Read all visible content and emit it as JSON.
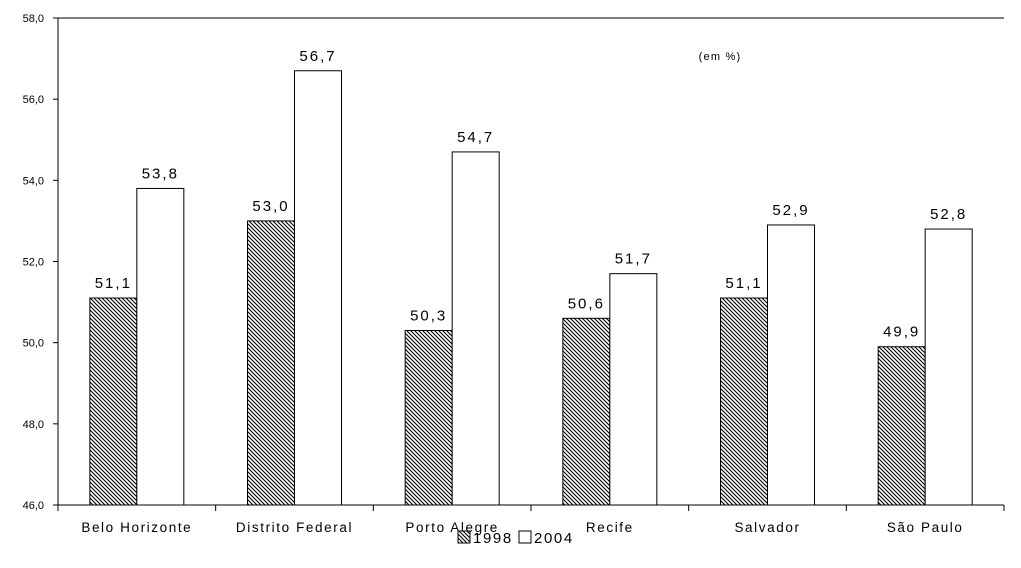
{
  "chart_data": {
    "type": "bar",
    "title": "",
    "note": "(em %)",
    "xlabel": "",
    "ylabel": "",
    "ylim": [
      46.0,
      58.0
    ],
    "yticks": [
      "46,0",
      "48,0",
      "50,0",
      "52,0",
      "54,0",
      "56,0",
      "58,0"
    ],
    "categories": [
      "Belo Horizonte",
      "Distrito Federal",
      "Porto Alegre",
      "Recife",
      "Salvador",
      "São Paulo"
    ],
    "series": [
      {
        "name": "1998",
        "values": [
          51.1,
          53.0,
          50.3,
          50.6,
          51.1,
          49.9
        ],
        "labels": [
          "51,1",
          "53,0",
          "50,3",
          "50,6",
          "51,1",
          "49,9"
        ],
        "fill": "hatched"
      },
      {
        "name": "2004",
        "values": [
          53.8,
          56.7,
          54.7,
          51.7,
          52.9,
          52.8
        ],
        "labels": [
          "53,8",
          "56,7",
          "54,7",
          "51,7",
          "52,9",
          "52,8"
        ],
        "fill": "#ffffff"
      }
    ],
    "grid": false,
    "legend_position": "bottom-center",
    "colors": {
      "stroke": "#000000",
      "background": "#ffffff"
    }
  }
}
